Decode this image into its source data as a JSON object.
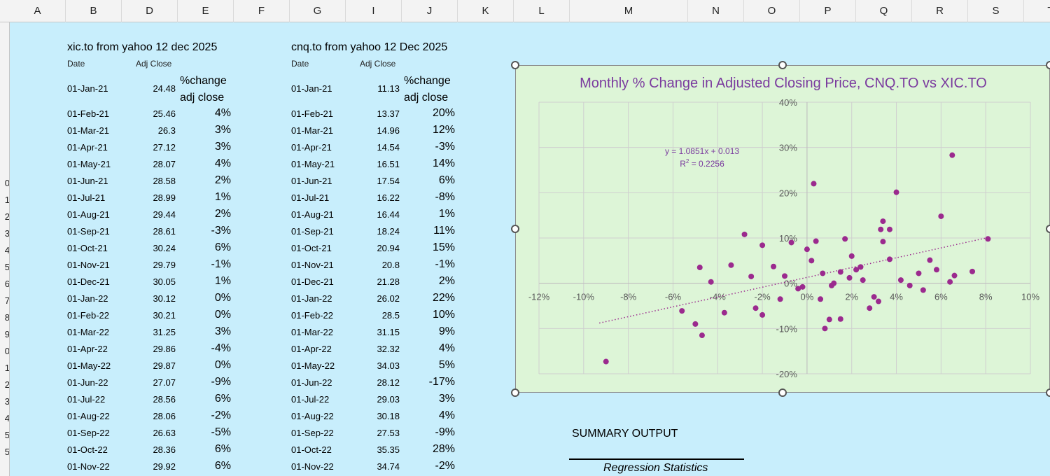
{
  "columns": [
    {
      "label": "A"
    },
    {
      "label": "B"
    },
    {
      "label": "D"
    },
    {
      "label": "E"
    },
    {
      "label": "F"
    },
    {
      "label": "G"
    },
    {
      "label": "I"
    },
    {
      "label": "J"
    },
    {
      "label": "K"
    },
    {
      "label": "L"
    },
    {
      "label": "M"
    },
    {
      "label": "N"
    },
    {
      "label": "O"
    },
    {
      "label": "P"
    },
    {
      "label": "Q"
    },
    {
      "label": "R"
    },
    {
      "label": "S"
    },
    {
      "label": "T"
    }
  ],
  "row_headers": [
    "",
    "",
    "",
    "",
    "",
    "",
    "",
    "",
    "",
    "0",
    "1",
    "2",
    "3",
    "4",
    "5",
    "6",
    "7",
    "8",
    "9",
    "0",
    "1",
    "2",
    "3",
    "4",
    "5",
    "5"
  ],
  "xic": {
    "title": "xic.to from yahoo 12 dec 2025",
    "date_header": "Date",
    "adj_header": "Adj Close",
    "pct_header_1": "%change",
    "pct_header_2": "adj close",
    "rows": [
      {
        "date": "01-Jan-21",
        "adj": "24.48",
        "pct": ""
      },
      {
        "date": "01-Feb-21",
        "adj": "25.46",
        "pct": "4%"
      },
      {
        "date": "01-Mar-21",
        "adj": "26.3",
        "pct": "3%"
      },
      {
        "date": "01-Apr-21",
        "adj": "27.12",
        "pct": "3%"
      },
      {
        "date": "01-May-21",
        "adj": "28.07",
        "pct": "4%"
      },
      {
        "date": "01-Jun-21",
        "adj": "28.58",
        "pct": "2%"
      },
      {
        "date": "01-Jul-21",
        "adj": "28.99",
        "pct": "1%"
      },
      {
        "date": "01-Aug-21",
        "adj": "29.44",
        "pct": "2%"
      },
      {
        "date": "01-Sep-21",
        "adj": "28.61",
        "pct": "-3%"
      },
      {
        "date": "01-Oct-21",
        "adj": "30.24",
        "pct": "6%"
      },
      {
        "date": "01-Nov-21",
        "adj": "29.79",
        "pct": "-1%"
      },
      {
        "date": "01-Dec-21",
        "adj": "30.05",
        "pct": "1%"
      },
      {
        "date": "01-Jan-22",
        "adj": "30.12",
        "pct": "0%"
      },
      {
        "date": "01-Feb-22",
        "adj": "30.21",
        "pct": "0%"
      },
      {
        "date": "01-Mar-22",
        "adj": "31.25",
        "pct": "3%"
      },
      {
        "date": "01-Apr-22",
        "adj": "29.86",
        "pct": "-4%"
      },
      {
        "date": "01-May-22",
        "adj": "29.87",
        "pct": "0%"
      },
      {
        "date": "01-Jun-22",
        "adj": "27.07",
        "pct": "-9%"
      },
      {
        "date": "01-Jul-22",
        "adj": "28.56",
        "pct": "6%"
      },
      {
        "date": "01-Aug-22",
        "adj": "28.06",
        "pct": "-2%"
      },
      {
        "date": "01-Sep-22",
        "adj": "26.63",
        "pct": "-5%"
      },
      {
        "date": "01-Oct-22",
        "adj": "28.36",
        "pct": "6%"
      },
      {
        "date": "01-Nov-22",
        "adj": "29.92",
        "pct": "6%"
      }
    ]
  },
  "cnq": {
    "title": "cnq.to from yahoo 12 Dec 2025",
    "date_header": "Date",
    "adj_header": "Adj Close",
    "pct_header_1": "%change",
    "pct_header_2": "adj close",
    "rows": [
      {
        "date": "01-Jan-21",
        "adj": "11.13",
        "pct": ""
      },
      {
        "date": "01-Feb-21",
        "adj": "13.37",
        "pct": "20%"
      },
      {
        "date": "01-Mar-21",
        "adj": "14.96",
        "pct": "12%"
      },
      {
        "date": "01-Apr-21",
        "adj": "14.54",
        "pct": "-3%"
      },
      {
        "date": "01-May-21",
        "adj": "16.51",
        "pct": "14%"
      },
      {
        "date": "01-Jun-21",
        "adj": "17.54",
        "pct": "6%"
      },
      {
        "date": "01-Jul-21",
        "adj": "16.22",
        "pct": "-8%"
      },
      {
        "date": "01-Aug-21",
        "adj": "16.44",
        "pct": "1%"
      },
      {
        "date": "01-Sep-21",
        "adj": "18.24",
        "pct": "11%"
      },
      {
        "date": "01-Oct-21",
        "adj": "20.94",
        "pct": "15%"
      },
      {
        "date": "01-Nov-21",
        "adj": "20.8",
        "pct": "-1%"
      },
      {
        "date": "01-Dec-21",
        "adj": "21.28",
        "pct": "2%"
      },
      {
        "date": "01-Jan-22",
        "adj": "26.02",
        "pct": "22%"
      },
      {
        "date": "01-Feb-22",
        "adj": "28.5",
        "pct": "10%"
      },
      {
        "date": "01-Mar-22",
        "adj": "31.15",
        "pct": "9%"
      },
      {
        "date": "01-Apr-22",
        "adj": "32.32",
        "pct": "4%"
      },
      {
        "date": "01-May-22",
        "adj": "34.03",
        "pct": "5%"
      },
      {
        "date": "01-Jun-22",
        "adj": "28.12",
        "pct": "-17%"
      },
      {
        "date": "01-Jul-22",
        "adj": "29.03",
        "pct": "3%"
      },
      {
        "date": "01-Aug-22",
        "adj": "30.18",
        "pct": "4%"
      },
      {
        "date": "01-Sep-22",
        "adj": "27.53",
        "pct": "-9%"
      },
      {
        "date": "01-Oct-22",
        "adj": "35.35",
        "pct": "28%"
      },
      {
        "date": "01-Nov-22",
        "adj": "34.74",
        "pct": "-2%"
      }
    ]
  },
  "chart_data": {
    "type": "scatter",
    "title": "Monthly % Change in Adjusted Closing Price, CNQ.TO vs XIC.TO",
    "xlabel": "",
    "ylabel": "",
    "xlim": [
      -0.12,
      0.1
    ],
    "ylim": [
      -0.2,
      0.4
    ],
    "x_ticks": [
      "-12%",
      "-10%",
      "-8%",
      "-6%",
      "-4%",
      "-2%",
      "0%",
      "2%",
      "4%",
      "6%",
      "8%",
      "10%"
    ],
    "y_ticks": [
      "-20%",
      "-10%",
      "0%",
      "10%",
      "20%",
      "30%",
      "40%"
    ],
    "grid": true,
    "trendline": {
      "type": "linear",
      "slope": 1.0851,
      "intercept": 0.013,
      "x_range": [
        -0.093,
        0.081
      ],
      "equation_label": "y = 1.0851x + 0.013",
      "r2_label_prefix": "R",
      "r2_label_sup": "2",
      "r2_label_value": " = 0.2256"
    },
    "colors": {
      "point": "#9b2a8e",
      "title": "#7a3a9e",
      "trend": "#9b2a8e",
      "plot_bg": "#ddf5d7",
      "grid": "#cfcfcf"
    },
    "points": [
      [
        0.04,
        0.201
      ],
      [
        0.034,
        0.137
      ],
      [
        0.065,
        0.283
      ],
      [
        0.034,
        0.092
      ],
      [
        0.02,
        0.06
      ],
      [
        0.01,
        -0.08
      ],
      [
        0.019,
        0.012
      ],
      [
        -0.028,
        0.108
      ],
      [
        0.06,
        0.148
      ],
      [
        -0.004,
        -0.012
      ],
      [
        0.003,
        0.22
      ],
      [
        0.017,
        0.098
      ],
      [
        0.004,
        0.093
      ],
      [
        0.037,
        0.119
      ],
      [
        0.033,
        0.119
      ],
      [
        0.015,
        -0.079
      ],
      [
        0.055,
        0.051
      ],
      [
        0.002,
        0.05
      ],
      [
        0.03,
        -0.03
      ],
      [
        -0.09,
        -0.173
      ],
      [
        -0.02,
        0.084
      ],
      [
        -0.015,
        0.037
      ],
      [
        -0.048,
        0.035
      ],
      [
        -0.043,
        0.003
      ],
      [
        -0.037,
        -0.065
      ],
      [
        -0.056,
        -0.061
      ],
      [
        -0.05,
        -0.09
      ],
      [
        -0.047,
        -0.115
      ],
      [
        -0.023,
        -0.055
      ],
      [
        -0.02,
        -0.07
      ],
      [
        -0.01,
        0.016
      ],
      [
        -0.007,
        0.09
      ],
      [
        -0.002,
        -0.008
      ],
      [
        0.008,
        -0.1
      ],
      [
        0.015,
        0.025
      ],
      [
        0.022,
        0.03
      ],
      [
        0.024,
        0.036
      ],
      [
        0.025,
        0.007
      ],
      [
        0.012,
        0.0
      ],
      [
        0.011,
        -0.005
      ],
      [
        0.007,
        0.022
      ],
      [
        0.006,
        -0.035
      ],
      [
        0.032,
        -0.04
      ],
      [
        0.037,
        0.053
      ],
      [
        0.042,
        0.007
      ],
      [
        0.046,
        -0.005
      ],
      [
        0.05,
        0.022
      ],
      [
        0.052,
        -0.015
      ],
      [
        0.058,
        0.03
      ],
      [
        0.064,
        0.003
      ],
      [
        0.066,
        0.017
      ],
      [
        0.074,
        0.026
      ],
      [
        0.081,
        0.098
      ],
      [
        -0.012,
        -0.035
      ],
      [
        0.028,
        -0.055
      ],
      [
        -0.034,
        0.04
      ],
      [
        0.0,
        0.075
      ],
      [
        -0.025,
        0.015
      ]
    ]
  },
  "summary": {
    "title": "SUMMARY OUTPUT",
    "regression_header": "Regression Statistics"
  }
}
